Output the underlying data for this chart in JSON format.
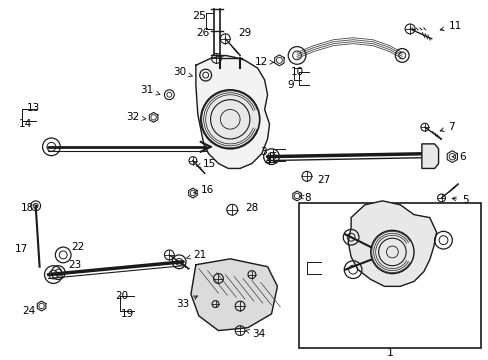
{
  "bg_color": "#ffffff",
  "dc": "#1a1a1a",
  "lc": "#000000",
  "fig_w": 4.89,
  "fig_h": 3.6,
  "dpi": 100
}
